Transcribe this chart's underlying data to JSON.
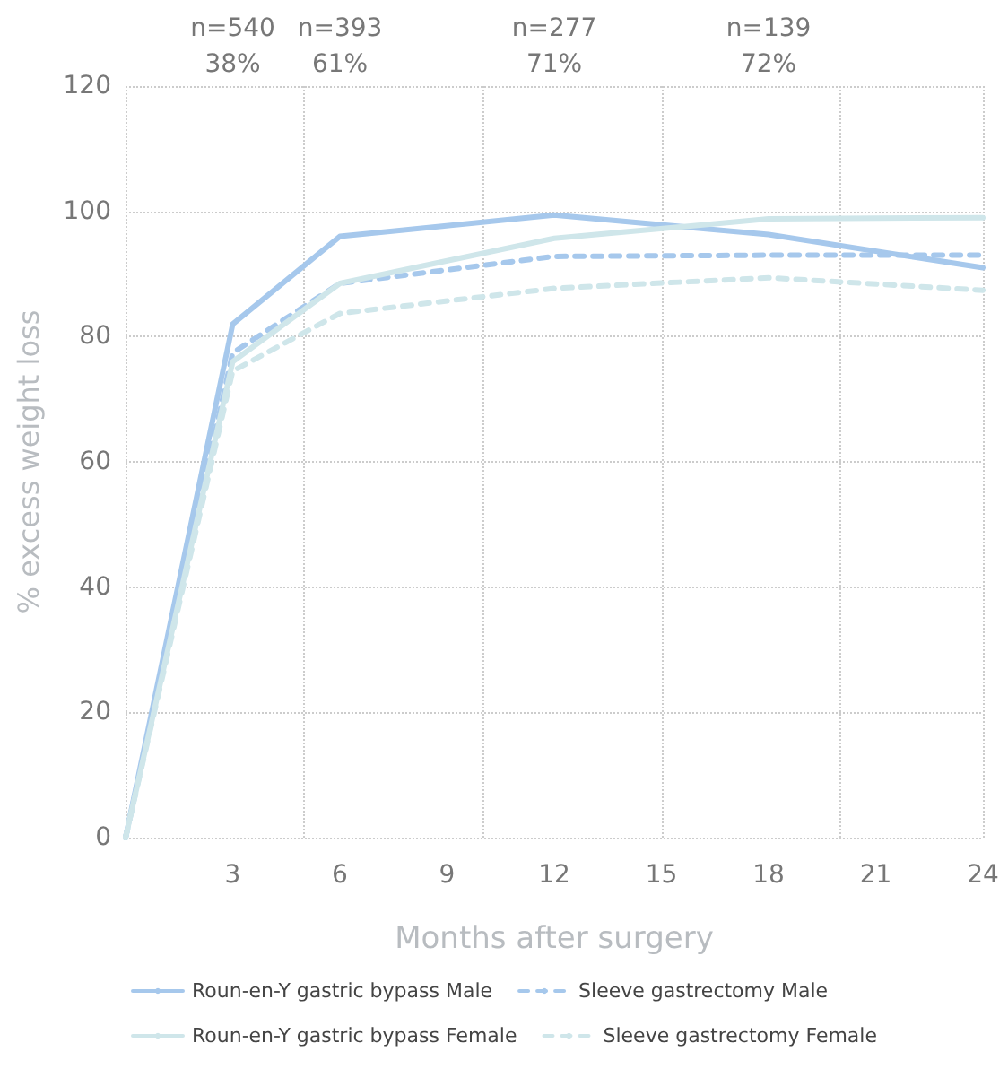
{
  "chart_data": {
    "type": "line",
    "xlabel": "Months after surgery",
    "ylabel": "% excess weight loss",
    "x": [
      0,
      3,
      6,
      12,
      18,
      24
    ],
    "xlim": [
      0,
      24
    ],
    "xticks": [
      3,
      6,
      9,
      12,
      15,
      18,
      21,
      24
    ],
    "ylim": [
      0,
      120
    ],
    "yticks": [
      0,
      20,
      40,
      60,
      80,
      100,
      120
    ],
    "grid": true,
    "legend": "bottom",
    "marker": "none",
    "annotations": [
      "n=540\n38%",
      "n=393\n61%",
      "n=277\n71%",
      "n=139\n72%"
    ],
    "series": [
      {
        "name": "Roun-en-Y gastric bypass Male",
        "color": "#a6c8ec",
        "line_style": "solid",
        "values": [
          0,
          82,
          96,
          99.4,
          96.3,
          91
        ]
      },
      {
        "name": "Sleeve gastrectomy Male",
        "color": "#a6c8ec",
        "line_style": "dashed",
        "values": [
          0,
          77.4,
          88.5,
          92.8,
          93,
          93
        ]
      },
      {
        "name": "Roun-en-Y gastric bypass Female",
        "color": "#cfe6ea",
        "line_style": "solid",
        "values": [
          0,
          76,
          88.5,
          95.7,
          98.8,
          99
        ]
      },
      {
        "name": "Sleeve gastrectomy Female",
        "color": "#cfe6ea",
        "line_style": "dashed",
        "values": [
          0,
          74.5,
          83.7,
          87.7,
          89.4,
          87.4
        ]
      }
    ]
  }
}
